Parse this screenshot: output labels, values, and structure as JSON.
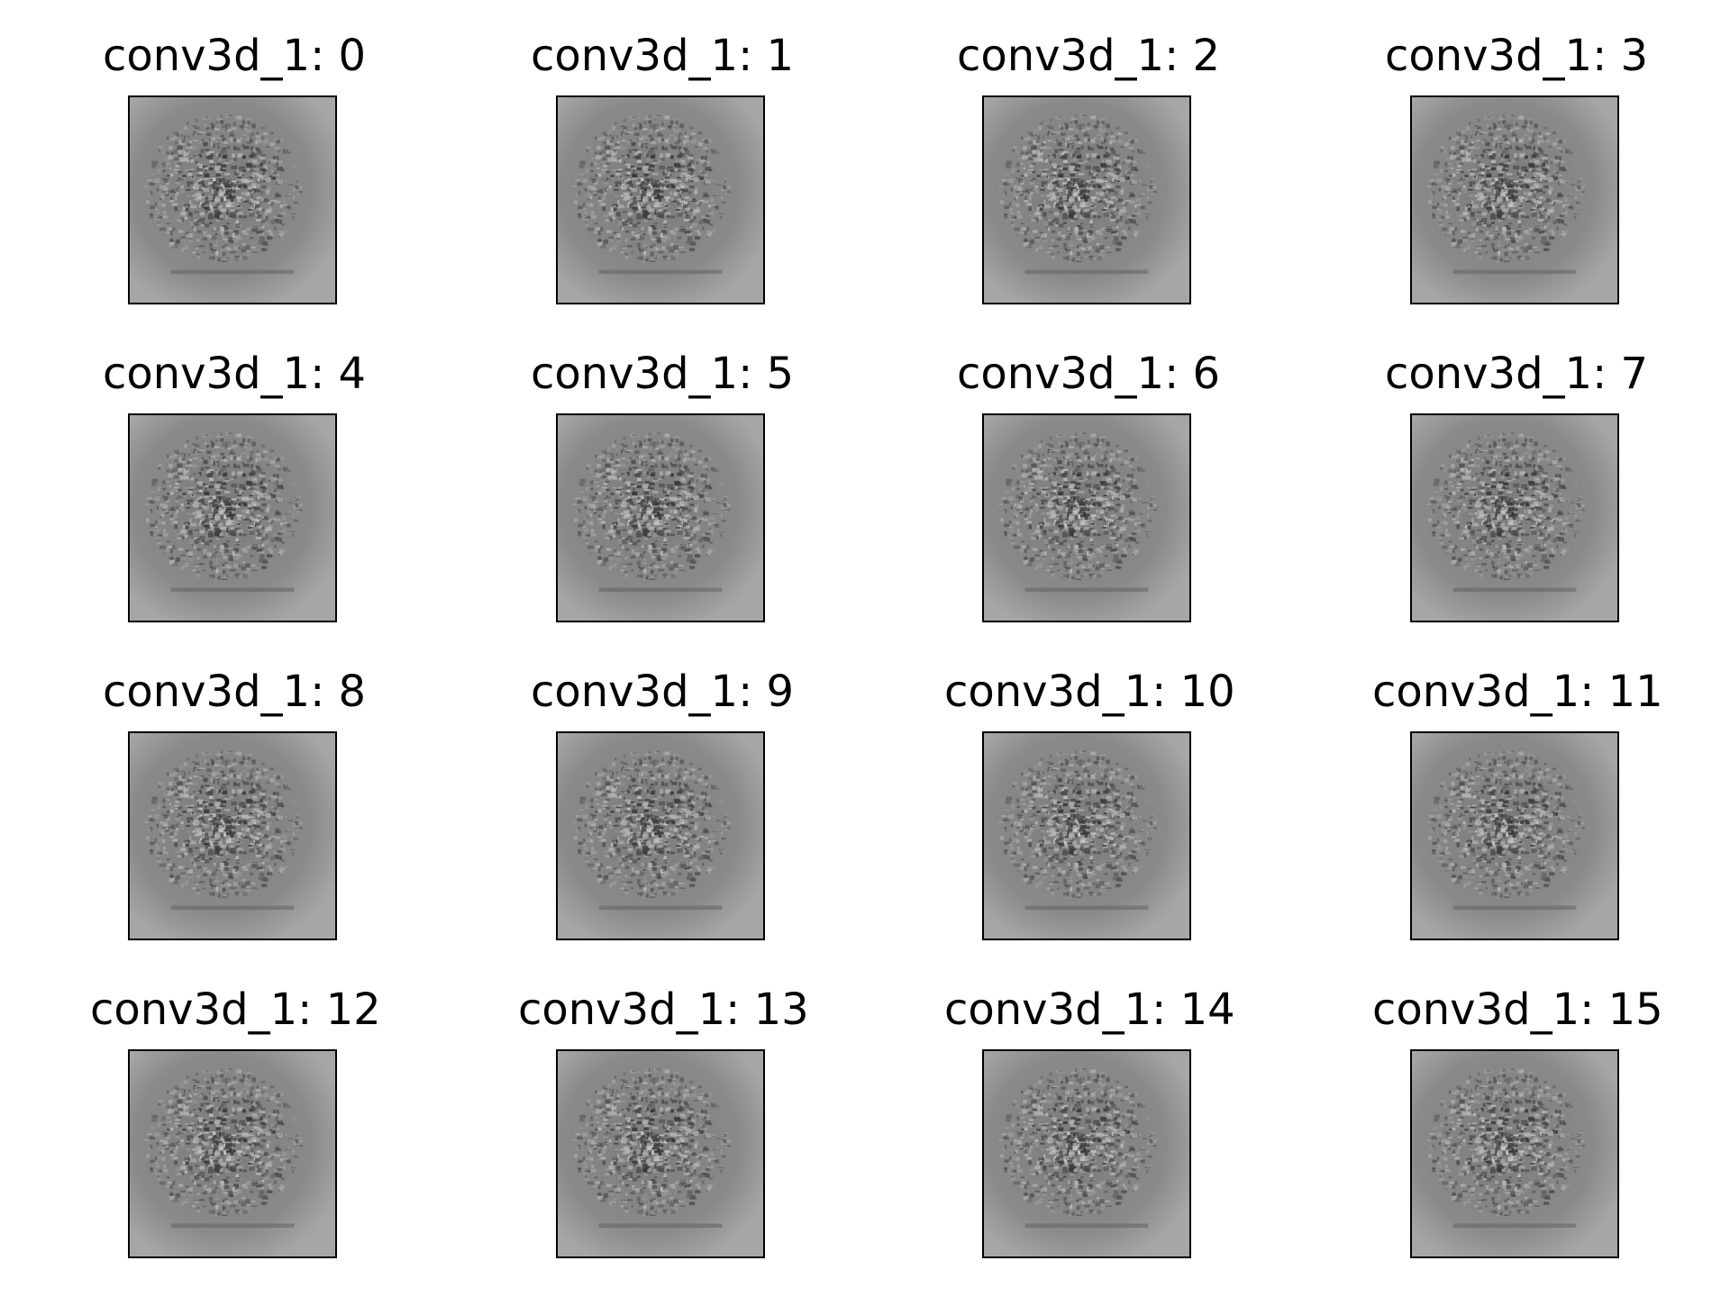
{
  "chart_data": {
    "type": "image-grid",
    "layer": "conv3d_1",
    "rows": 4,
    "columns": 4,
    "panels": [
      {
        "title": "conv3d_1: 0",
        "index": 0
      },
      {
        "title": "conv3d_1: 1",
        "index": 1
      },
      {
        "title": "conv3d_1: 2",
        "index": 2
      },
      {
        "title": "conv3d_1: 3",
        "index": 3
      },
      {
        "title": "conv3d_1: 4",
        "index": 4
      },
      {
        "title": "conv3d_1: 5",
        "index": 5
      },
      {
        "title": "conv3d_1: 6",
        "index": 6
      },
      {
        "title": "conv3d_1: 7",
        "index": 7
      },
      {
        "title": "conv3d_1: 8",
        "index": 8
      },
      {
        "title": "conv3d_1: 9",
        "index": 9
      },
      {
        "title": "conv3d_1: 10",
        "index": 10
      },
      {
        "title": "conv3d_1: 11",
        "index": 11
      },
      {
        "title": "conv3d_1: 12",
        "index": 12
      },
      {
        "title": "conv3d_1: 13",
        "index": 13
      },
      {
        "title": "conv3d_1: 14",
        "index": 14
      },
      {
        "title": "conv3d_1: 15",
        "index": 15
      }
    ],
    "colormap": "gray",
    "axis_ticks": false
  },
  "colors": {
    "background": "#ffffff",
    "frame": "#000000",
    "image_base": "#8e8e8e",
    "image_dark": "#3a3a3a",
    "image_light": "#bdbdbd"
  }
}
